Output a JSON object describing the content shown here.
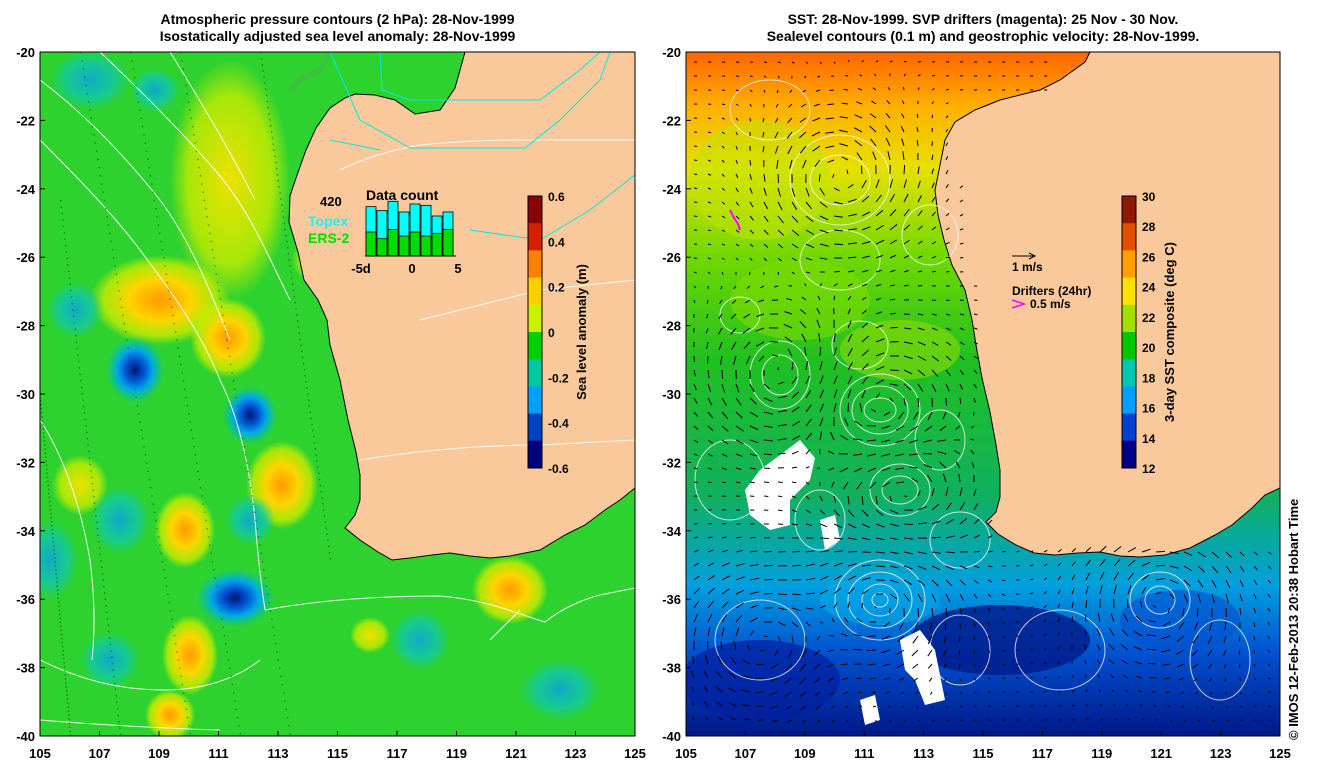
{
  "left_panel": {
    "title_line1": "Atmospheric pressure contours (2 hPa): 28-Nov-1999",
    "title_line2": "Isostatically adjusted sea level anomaly: 28-Nov-1999",
    "colorbar": {
      "label": "Sea level anomaly (m)",
      "ticks": [
        "0.6",
        "0.4",
        "0.2",
        "0",
        "-0.2",
        "-0.4",
        "-0.6"
      ],
      "colors": [
        "#8b0000",
        "#d22000",
        "#ff8000",
        "#ffd000",
        "#c8f000",
        "#00d000",
        "#00c8a0",
        "#00a0ff",
        "#0040c0",
        "#000080"
      ]
    },
    "inset": {
      "title": "Data count",
      "max_label": "420",
      "legend_topex": "Topex",
      "legend_ers2": "ERS-2",
      "x_ticks": [
        "-5d",
        "0",
        "5"
      ],
      "topex_counts": [
        370,
        340,
        410,
        330,
        390,
        380,
        300,
        330
      ],
      "ers2_counts": [
        180,
        130,
        200,
        150,
        180,
        150,
        170,
        200
      ],
      "topex_color": "#00ffff",
      "ers2_color": "#00dd00"
    }
  },
  "right_panel": {
    "title_line1": "SST: 28-Nov-1999. SVP drifters (magenta): 25 Nov - 30 Nov.",
    "title_line2": "Sealevel contours (0.1 m) and geostrophic velocity: 28-Nov-1999.",
    "colorbar": {
      "label": "3-day SST composite (deg C)",
      "ticks": [
        "30",
        "28",
        "26",
        "24",
        "22",
        "20",
        "18",
        "16",
        "14",
        "12"
      ],
      "colors": [
        "#8b1a00",
        "#e05000",
        "#ffa000",
        "#ffe000",
        "#a0e000",
        "#00c800",
        "#00c8b0",
        "#00a0ff",
        "#0040d0",
        "#000080"
      ]
    },
    "scale_label": "1 m/s",
    "drifter_label": "Drifters (24hr)",
    "drifter_speed": "0.5 m/s"
  },
  "axes": {
    "lat_ticks": [
      "-20",
      "-22",
      "-24",
      "-26",
      "-28",
      "-30",
      "-32",
      "-34",
      "-36",
      "-38",
      "-40"
    ],
    "lon_ticks": [
      "105",
      "107",
      "109",
      "111",
      "113",
      "115",
      "117",
      "119",
      "121",
      "123",
      "125"
    ]
  },
  "credit": "© IMOS 12-Feb-2013 20:38 Hobart Time",
  "colors": {
    "land": "#f9c89b",
    "ocean_base": "#2fc82f"
  }
}
